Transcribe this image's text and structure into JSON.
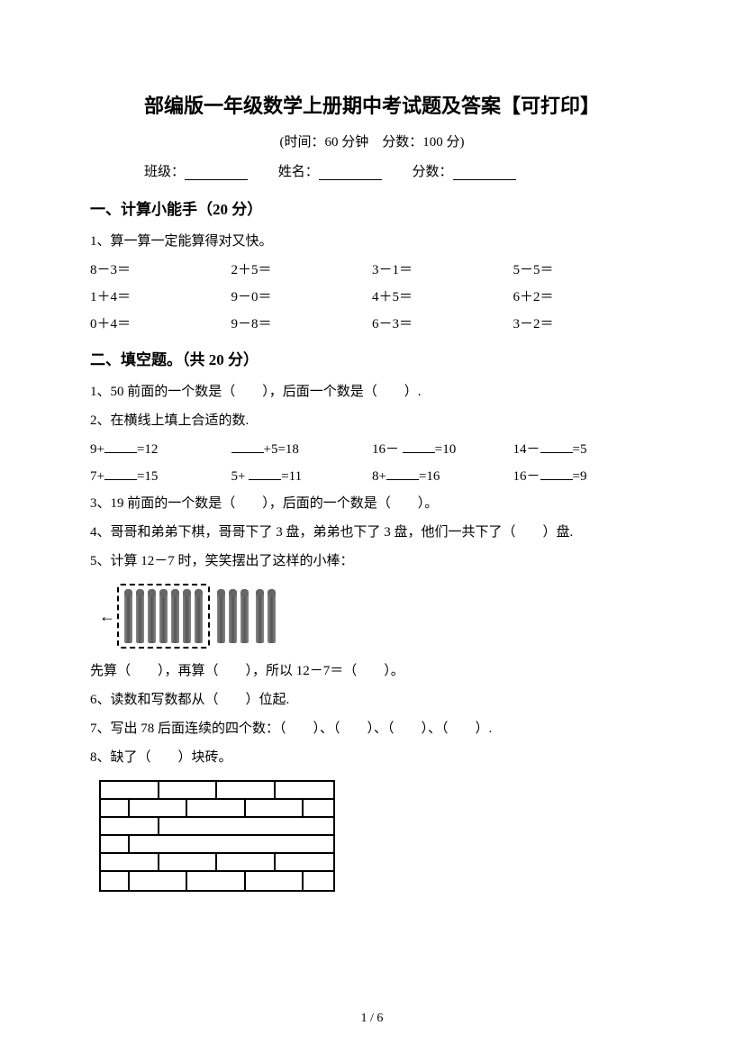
{
  "title": "部编版一年级数学上册期中考试题及答案【可打印】",
  "subtitle": "(时间：60 分钟　分数：100 分)",
  "info": {
    "class_label": "班级：",
    "name_label": "姓名：",
    "score_label": "分数："
  },
  "section1": {
    "header": "一、计算小能手（20 分）",
    "q1_intro": "1、算一算一定能算得对又快。",
    "rows": [
      [
        "8－3＝",
        "2＋5＝",
        "3－1＝",
        "5－5＝"
      ],
      [
        "1＋4＝",
        "9－0＝",
        "4＋5＝",
        "6＋2＝"
      ],
      [
        "0＋4＝",
        "9－8＝",
        "6－3＝",
        "3－2＝"
      ]
    ]
  },
  "section2": {
    "header": "二、填空题。（共 20 分）",
    "q1": "1、50 前面的一个数是（　　），后面一个数是（　　）.",
    "q2_intro": "2、在横线上填上合适的数.",
    "q2_rows": [
      [
        {
          "pre": "9+",
          "post": "=12"
        },
        {
          "pre": "",
          "post": "+5=18"
        },
        {
          "pre": "16－ ",
          "post": "=10"
        },
        {
          "pre": "14－",
          "post": "=5"
        }
      ],
      [
        {
          "pre": "7+",
          "post": "=15"
        },
        {
          "pre": "5+ ",
          "post": "=11"
        },
        {
          "pre": "8+",
          "post": "=16"
        },
        {
          "pre": "16－",
          "post": "=9"
        }
      ]
    ],
    "q3": "3、19 前面的一个数是（　　），后面的一个数是（　　）。",
    "q4": "4、哥哥和弟弟下棋，哥哥下了 3 盘，弟弟也下了 3 盘，他们一共下了（　　）盘.",
    "q5_intro": "5、计算 12－7 时，笑笑摆出了这样的小棒：",
    "q5_text": "先算（　　），再算（　　），所以 12－7＝（　　）。",
    "q6": "6、读数和写数都从（　　）位起.",
    "q7": "7、写出 78 后面连续的四个数：（　　）、（　　）、（　　）、（　　）.",
    "q8": "8、缺了（　　）块砖。"
  },
  "sticks": {
    "dashed_count": 7,
    "group2": 3,
    "group3": 2,
    "stick_fill": "#666666"
  },
  "brick_wall": {
    "row_pattern_even": [
      65,
      65,
      65,
      65
    ],
    "row_pattern_odd": [
      32,
      65,
      65,
      65,
      33
    ],
    "gap_rows": [
      2,
      3
    ],
    "border_color": "#000000"
  },
  "page_number": "1 / 6"
}
